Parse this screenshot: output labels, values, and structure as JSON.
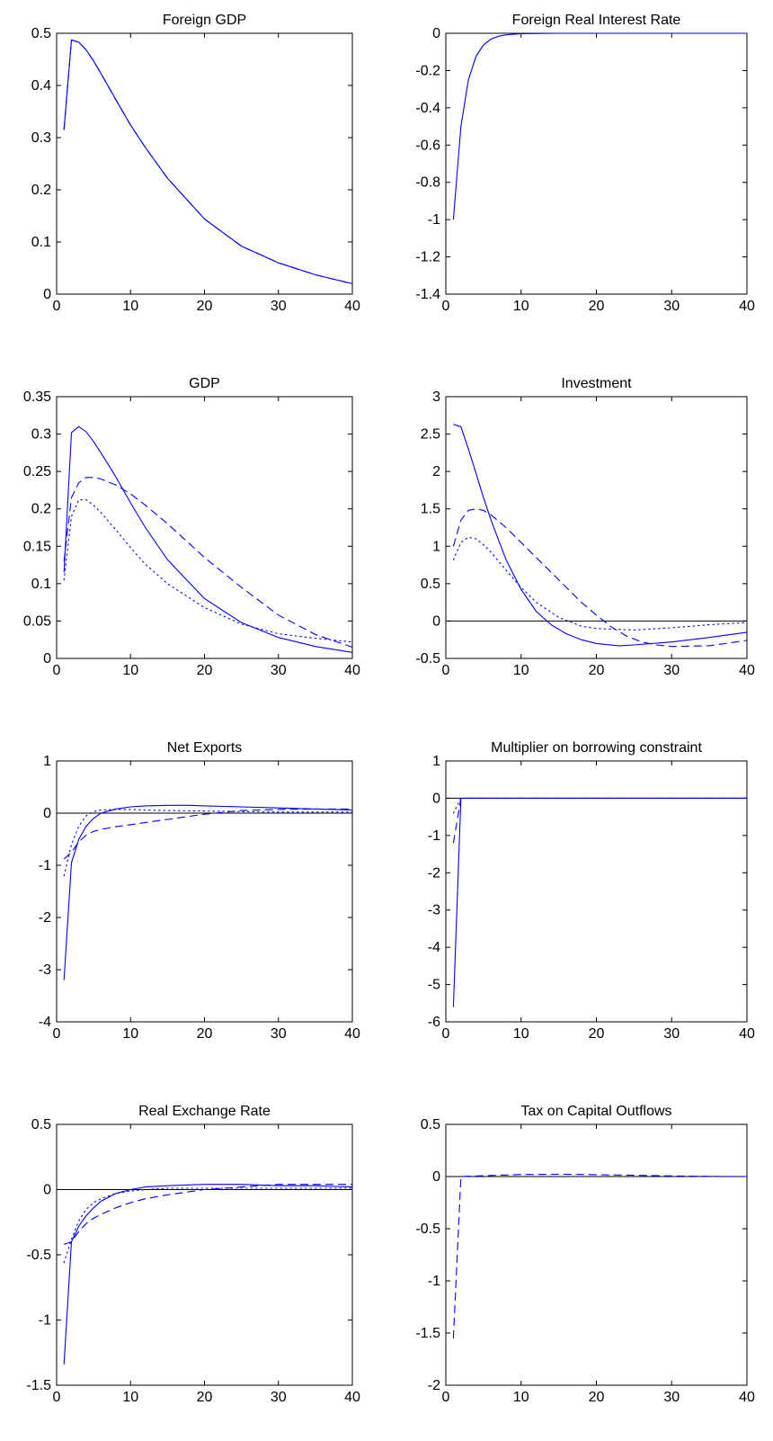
{
  "chart_data": [
    {
      "type": "line",
      "title": "Foreign GDP",
      "xlim": [
        0,
        40
      ],
      "ylim": [
        0,
        0.5
      ],
      "xticks": [
        0,
        10,
        20,
        30,
        40
      ],
      "yticks": [
        0,
        0.1,
        0.2,
        0.3,
        0.4,
        0.5
      ],
      "xtick_labels": [
        "0",
        "10",
        "20",
        "30",
        "40"
      ],
      "ytick_labels": [
        "0",
        "0.1",
        "0.2",
        "0.3",
        "0.4",
        "0.5"
      ],
      "zero_line": false,
      "series": [
        {
          "style": "solid",
          "x": [
            1,
            2,
            3,
            4,
            5,
            6,
            8,
            10,
            12,
            15,
            20,
            25,
            30,
            35,
            40
          ],
          "y": [
            0.315,
            0.487,
            0.483,
            0.468,
            0.447,
            0.423,
            0.373,
            0.324,
            0.281,
            0.222,
            0.144,
            0.092,
            0.06,
            0.037,
            0.02
          ]
        },
        {
          "style": "dashed",
          "x": [
            1,
            2,
            3,
            4,
            5,
            6,
            8,
            10,
            12,
            15,
            20,
            25,
            30,
            35,
            40
          ],
          "y": [
            0.315,
            0.487,
            0.483,
            0.468,
            0.447,
            0.423,
            0.373,
            0.324,
            0.281,
            0.222,
            0.144,
            0.092,
            0.06,
            0.037,
            0.02
          ]
        }
      ]
    },
    {
      "type": "line",
      "title": "Foreign Real Interest Rate",
      "xlim": [
        0,
        40
      ],
      "ylim": [
        -1.4,
        0
      ],
      "xticks": [
        0,
        10,
        20,
        30,
        40
      ],
      "yticks": [
        -1.4,
        -1.2,
        -1,
        -0.8,
        -0.6,
        -0.4,
        -0.2,
        0
      ],
      "xtick_labels": [
        "0",
        "10",
        "20",
        "30",
        "40"
      ],
      "ytick_labels": [
        "-1.4",
        "-1.2",
        "-1",
        "-0.8",
        "-0.6",
        "-0.4",
        "-0.2",
        "0"
      ],
      "zero_line": true,
      "series": [
        {
          "style": "solid",
          "x": [
            1,
            2,
            3,
            4,
            5,
            6,
            7,
            8,
            10,
            15,
            20,
            30,
            40
          ],
          "y": [
            -1.0,
            -0.5,
            -0.25,
            -0.125,
            -0.0625,
            -0.031,
            -0.016,
            -0.008,
            -0.002,
            0,
            0,
            0,
            0
          ]
        }
      ]
    },
    {
      "type": "line",
      "title": "GDP",
      "xlim": [
        0,
        40
      ],
      "ylim": [
        0,
        0.35
      ],
      "xticks": [
        0,
        10,
        20,
        30,
        40
      ],
      "yticks": [
        0,
        0.05,
        0.1,
        0.15,
        0.2,
        0.25,
        0.3,
        0.35
      ],
      "xtick_labels": [
        "0",
        "10",
        "20",
        "30",
        "40"
      ],
      "ytick_labels": [
        "0",
        "0.05",
        "0.1",
        "0.15",
        "0.2",
        "0.25",
        "0.3",
        "0.35"
      ],
      "zero_line": false,
      "series": [
        {
          "style": "solid",
          "x": [
            1,
            2,
            3,
            4,
            5,
            6,
            8,
            10,
            12,
            15,
            20,
            25,
            30,
            35,
            40
          ],
          "y": [
            0.115,
            0.302,
            0.31,
            0.303,
            0.29,
            0.275,
            0.243,
            0.208,
            0.175,
            0.132,
            0.08,
            0.048,
            0.028,
            0.016,
            0.008
          ]
        },
        {
          "style": "dashed",
          "x": [
            1,
            2,
            3,
            4,
            5,
            6,
            8,
            10,
            12,
            15,
            20,
            25,
            30,
            35,
            40
          ],
          "y": [
            0.13,
            0.215,
            0.235,
            0.242,
            0.242,
            0.24,
            0.232,
            0.22,
            0.205,
            0.18,
            0.135,
            0.095,
            0.058,
            0.032,
            0.015
          ]
        },
        {
          "style": "dotted",
          "x": [
            1,
            2,
            3,
            4,
            5,
            6,
            8,
            10,
            12,
            15,
            20,
            25,
            30,
            35,
            40
          ],
          "y": [
            0.105,
            0.19,
            0.212,
            0.212,
            0.205,
            0.195,
            0.172,
            0.148,
            0.126,
            0.1,
            0.068,
            0.046,
            0.033,
            0.027,
            0.022
          ]
        }
      ]
    },
    {
      "type": "line",
      "title": "Investment",
      "xlim": [
        0,
        40
      ],
      "ylim": [
        -0.5,
        3
      ],
      "xticks": [
        0,
        10,
        20,
        30,
        40
      ],
      "yticks": [
        -0.5,
        0,
        0.5,
        1,
        1.5,
        2,
        2.5,
        3
      ],
      "xtick_labels": [
        "0",
        "10",
        "20",
        "30",
        "40"
      ],
      "ytick_labels": [
        "-0.5",
        "0",
        "0.5",
        "1",
        "1.5",
        "2",
        "2.5",
        "3"
      ],
      "zero_line": true,
      "series": [
        {
          "style": "solid",
          "x": [
            1,
            2,
            3,
            4,
            5,
            6,
            8,
            10,
            12,
            14,
            16,
            18,
            20,
            23,
            25,
            30,
            35,
            40
          ],
          "y": [
            2.63,
            2.6,
            2.3,
            1.98,
            1.65,
            1.35,
            0.82,
            0.42,
            0.13,
            -0.05,
            -0.17,
            -0.25,
            -0.3,
            -0.33,
            -0.32,
            -0.28,
            -0.22,
            -0.15
          ]
        },
        {
          "style": "dashed",
          "x": [
            1,
            2,
            3,
            4,
            5,
            6,
            8,
            10,
            12,
            14,
            16,
            18,
            20,
            22,
            24,
            26,
            28,
            30,
            35,
            40
          ],
          "y": [
            1.0,
            1.35,
            1.48,
            1.5,
            1.48,
            1.42,
            1.25,
            1.05,
            0.85,
            0.65,
            0.45,
            0.25,
            0.08,
            -0.08,
            -0.2,
            -0.28,
            -0.32,
            -0.34,
            -0.33,
            -0.26
          ]
        },
        {
          "style": "dotted",
          "x": [
            1,
            2,
            3,
            4,
            5,
            6,
            8,
            10,
            12,
            15,
            18,
            20,
            25,
            30,
            35,
            40
          ],
          "y": [
            0.82,
            1.05,
            1.12,
            1.1,
            1.02,
            0.92,
            0.68,
            0.45,
            0.25,
            0.05,
            -0.07,
            -0.1,
            -0.12,
            -0.09,
            -0.05,
            -0.02
          ]
        }
      ]
    },
    {
      "type": "line",
      "title": "Net Exports",
      "xlim": [
        0,
        40
      ],
      "ylim": [
        -4,
        1
      ],
      "xticks": [
        0,
        10,
        20,
        30,
        40
      ],
      "yticks": [
        -4,
        -3,
        -2,
        -1,
        0,
        1
      ],
      "xtick_labels": [
        "0",
        "10",
        "20",
        "30",
        "40"
      ],
      "ytick_labels": [
        "-4",
        "-3",
        "-2",
        "-1",
        "0",
        "1"
      ],
      "zero_line": true,
      "series": [
        {
          "style": "solid",
          "x": [
            1,
            2,
            3,
            4,
            5,
            6,
            8,
            10,
            12,
            15,
            18,
            20,
            25,
            30,
            35,
            40
          ],
          "y": [
            -3.2,
            -0.95,
            -0.5,
            -0.25,
            -0.1,
            0.0,
            0.08,
            0.12,
            0.14,
            0.15,
            0.15,
            0.14,
            0.12,
            0.1,
            0.08,
            0.06
          ]
        },
        {
          "style": "dashed",
          "x": [
            1,
            2,
            3,
            4,
            5,
            6,
            8,
            10,
            12,
            15,
            18,
            20,
            23,
            25,
            30,
            35,
            40
          ],
          "y": [
            -0.88,
            -0.75,
            -0.55,
            -0.42,
            -0.35,
            -0.31,
            -0.26,
            -0.22,
            -0.18,
            -0.12,
            -0.06,
            -0.02,
            0.02,
            0.05,
            0.07,
            0.08,
            0.08
          ]
        },
        {
          "style": "dotted",
          "x": [
            1,
            2,
            3,
            4,
            5,
            6,
            8,
            10,
            12,
            15,
            20,
            25,
            30,
            35,
            40
          ],
          "y": [
            -1.2,
            -0.6,
            -0.25,
            -0.05,
            0.03,
            0.06,
            0.07,
            0.07,
            0.06,
            0.05,
            0.04,
            0.03,
            0.02,
            0.02,
            0.02
          ]
        }
      ]
    },
    {
      "type": "line",
      "title": "Multiplier on borrowing constraint",
      "xlim": [
        0,
        40
      ],
      "ylim": [
        -6,
        1
      ],
      "xticks": [
        0,
        10,
        20,
        30,
        40
      ],
      "yticks": [
        -6,
        -5,
        -4,
        -3,
        -2,
        -1,
        0,
        1
      ],
      "xtick_labels": [
        "0",
        "10",
        "20",
        "30",
        "40"
      ],
      "ytick_labels": [
        "-6",
        "-5",
        "-4",
        "-3",
        "-2",
        "-1",
        "0",
        "1"
      ],
      "zero_line": true,
      "series": [
        {
          "style": "solid",
          "x": [
            1,
            2,
            3,
            5,
            10,
            20,
            30,
            40
          ],
          "y": [
            -5.6,
            0.0,
            0.0,
            0.0,
            0.0,
            0.0,
            0.0,
            0.0
          ]
        },
        {
          "style": "dashed",
          "x": [
            1,
            2,
            3,
            5,
            10,
            20,
            30,
            40
          ],
          "y": [
            -1.2,
            0.0,
            0.0,
            0.0,
            0.0,
            0.0,
            0.0,
            0.0
          ]
        },
        {
          "style": "dotted",
          "x": [
            1,
            2,
            3,
            5,
            10,
            20,
            30,
            40
          ],
          "y": [
            -0.4,
            0.0,
            0.0,
            0.0,
            0.0,
            0.0,
            0.0,
            0.0
          ]
        }
      ]
    },
    {
      "type": "line",
      "title": "Real Exchange Rate",
      "xlim": [
        0,
        40
      ],
      "ylim": [
        -1.5,
        0.5
      ],
      "xticks": [
        0,
        10,
        20,
        30,
        40
      ],
      "yticks": [
        -1.5,
        -1,
        -0.5,
        0,
        0.5
      ],
      "xtick_labels": [
        "0",
        "10",
        "20",
        "30",
        "40"
      ],
      "ytick_labels": [
        "-1.5",
        "-1",
        "-0.5",
        "0",
        "0.5"
      ],
      "zero_line": true,
      "series": [
        {
          "style": "solid",
          "x": [
            1,
            2,
            3,
            4,
            5,
            6,
            8,
            10,
            12,
            15,
            20,
            25,
            30,
            35,
            40
          ],
          "y": [
            -1.34,
            -0.4,
            -0.28,
            -0.2,
            -0.14,
            -0.09,
            -0.03,
            0.0,
            0.02,
            0.03,
            0.04,
            0.04,
            0.03,
            0.03,
            0.02
          ]
        },
        {
          "style": "dashed",
          "x": [
            1,
            2,
            3,
            4,
            5,
            6,
            8,
            10,
            12,
            15,
            20,
            25,
            30,
            35,
            40
          ],
          "y": [
            -0.42,
            -0.4,
            -0.32,
            -0.26,
            -0.22,
            -0.19,
            -0.14,
            -0.1,
            -0.07,
            -0.04,
            0.0,
            0.02,
            0.04,
            0.04,
            0.04
          ]
        },
        {
          "style": "dotted",
          "x": [
            1,
            2,
            3,
            4,
            5,
            6,
            8,
            10,
            12,
            15,
            20,
            25,
            30,
            35,
            40
          ],
          "y": [
            -0.56,
            -0.38,
            -0.24,
            -0.15,
            -0.1,
            -0.07,
            -0.03,
            -0.01,
            0.0,
            0.01,
            0.01,
            0.01,
            0.01,
            0.01,
            0.01
          ]
        }
      ]
    },
    {
      "type": "line",
      "title": "Tax on Capital Outflows",
      "xlim": [
        0,
        40
      ],
      "ylim": [
        -2,
        0.5
      ],
      "xticks": [
        0,
        10,
        20,
        30,
        40
      ],
      "yticks": [
        -2,
        -1.5,
        -1,
        -0.5,
        0,
        0.5
      ],
      "xtick_labels": [
        "0",
        "10",
        "20",
        "30",
        "40"
      ],
      "ytick_labels": [
        "-2",
        "-1.5",
        "-1",
        "-0.5",
        "0",
        "0.5"
      ],
      "zero_line": true,
      "series": [
        {
          "style": "dashed",
          "x": [
            1,
            2,
            4,
            6,
            8,
            10,
            12,
            15,
            18,
            20,
            25,
            30,
            35,
            40
          ],
          "y": [
            -1.55,
            0.0,
            0.005,
            0.01,
            0.015,
            0.02,
            0.02,
            0.022,
            0.02,
            0.018,
            0.012,
            0.006,
            0.002,
            0.0
          ]
        }
      ]
    }
  ]
}
